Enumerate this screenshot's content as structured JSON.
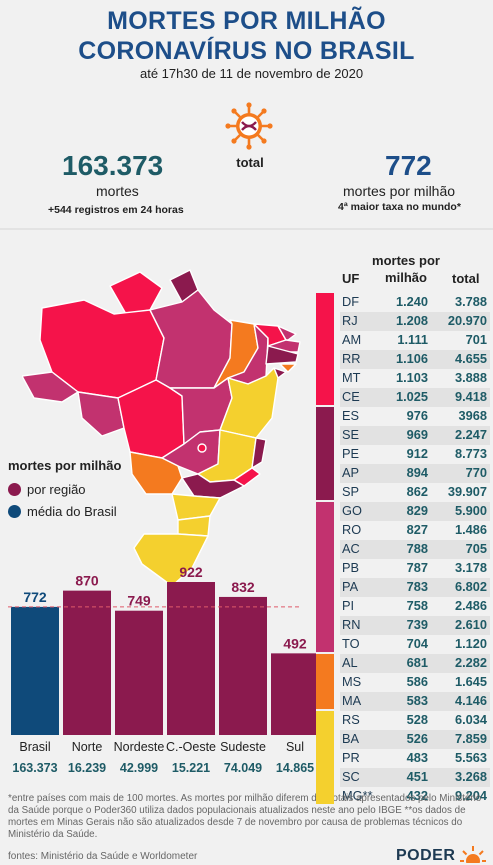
{
  "title_line1": "MORTES POR MILHÃO",
  "title_line2": "CORONAVÍRUS NO BRASIL",
  "subtitle": "até 17h30 de 11 de novembro de 2020",
  "total_label": "total",
  "left_stat": {
    "number": "163.373",
    "label": "mortes",
    "note": "+544 registros em 24 horas"
  },
  "right_stat": {
    "number": "772",
    "label": "mortes por milhão",
    "note": "4ª maior taxa no mundo*"
  },
  "legend": {
    "title": "mortes por milhão",
    "region": "por região",
    "brasil": "média do Brasil"
  },
  "colors": {
    "title": "#1d4e89",
    "brasil": "#0f4a7a",
    "region": "#8b1a4e",
    "band1": "#f5134a",
    "band2": "#8b1a4e",
    "band3": "#c2326f",
    "band4": "#f47a1f",
    "band5": "#f4d02e",
    "number": "#1e5b66"
  },
  "table": {
    "headers": {
      "uf": "UF",
      "rate_line1": "mortes por",
      "rate_line2": "milhão",
      "total": "total"
    },
    "rows": [
      {
        "uf": "DF",
        "rate": "1.240",
        "total": "3.788",
        "band": "band1"
      },
      {
        "uf": "RJ",
        "rate": "1.208",
        "total": "20.970",
        "band": "band1"
      },
      {
        "uf": "AM",
        "rate": "1.111",
        "total": "701",
        "band": "band1"
      },
      {
        "uf": "RR",
        "rate": "1.106",
        "total": "4.655",
        "band": "band1"
      },
      {
        "uf": "MT",
        "rate": "1.103",
        "total": "3.888",
        "band": "band1"
      },
      {
        "uf": "CE",
        "rate": "1.025",
        "total": "9.418",
        "band": "band1"
      },
      {
        "uf": "ES",
        "rate": "976",
        "total": "3968",
        "band": "band2"
      },
      {
        "uf": "SE",
        "rate": "969",
        "total": "2.247",
        "band": "band2"
      },
      {
        "uf": "PE",
        "rate": "912",
        "total": "8.773",
        "band": "band2"
      },
      {
        "uf": "AP",
        "rate": "894",
        "total": "770",
        "band": "band2"
      },
      {
        "uf": "SP",
        "rate": "862",
        "total": "39.907",
        "band": "band2"
      },
      {
        "uf": "GO",
        "rate": "829",
        "total": "5.900",
        "band": "band3"
      },
      {
        "uf": "RO",
        "rate": "827",
        "total": "1.486",
        "band": "band3"
      },
      {
        "uf": "AC",
        "rate": "788",
        "total": "705",
        "band": "band3"
      },
      {
        "uf": "PB",
        "rate": "787",
        "total": "3.178",
        "band": "band3"
      },
      {
        "uf": "PA",
        "rate": "783",
        "total": "6.802",
        "band": "band3"
      },
      {
        "uf": "PI",
        "rate": "758",
        "total": "2.486",
        "band": "band3"
      },
      {
        "uf": "RN",
        "rate": "739",
        "total": "2.610",
        "band": "band3"
      },
      {
        "uf": "TO",
        "rate": "704",
        "total": "1.120",
        "band": "band3"
      },
      {
        "uf": "AL",
        "rate": "681",
        "total": "2.282",
        "band": "band4"
      },
      {
        "uf": "MS",
        "rate": "586",
        "total": "1.645",
        "band": "band4"
      },
      {
        "uf": "MA",
        "rate": "583",
        "total": "4.146",
        "band": "band4"
      },
      {
        "uf": "RS",
        "rate": "528",
        "total": "6.034",
        "band": "band5"
      },
      {
        "uf": "BA",
        "rate": "526",
        "total": "7.859",
        "band": "band5"
      },
      {
        "uf": "PR",
        "rate": "483",
        "total": "5.563",
        "band": "band5"
      },
      {
        "uf": "SC",
        "rate": "451",
        "total": "3.268",
        "band": "band5"
      },
      {
        "uf": "MG**",
        "rate": "432",
        "total": "9.204",
        "band": "band5"
      }
    ]
  },
  "chart_data": {
    "type": "bar",
    "categories": [
      "Brasil",
      "Norte",
      "Nordeste",
      "C.-Oeste",
      "Sudeste",
      "Sul"
    ],
    "values": [
      772,
      870,
      749,
      922,
      832,
      492
    ],
    "totals": [
      "163.373",
      "16.239",
      "42.999",
      "15.221",
      "74.049",
      "14.865"
    ],
    "value_labels": [
      "772",
      "870",
      "749",
      "922",
      "832",
      "492"
    ],
    "reference_line": 772,
    "ylim": [
      0,
      922
    ]
  },
  "footnote": "*entre países com mais de 100 mortes. As mortes por milhão diferem dos totais apresentados pelo Ministério da Saúde porque o Poder360 utiliza dados populacionais atualizados neste ano pelo IBGE **os dados de mortes em Minas Gerais não são atualizados desde 7 de novembro por causa de problemas técnicos do Ministério da Saúde.",
  "source": "fontes: Ministério da Saúde e Worldometer",
  "logo": "PODER"
}
